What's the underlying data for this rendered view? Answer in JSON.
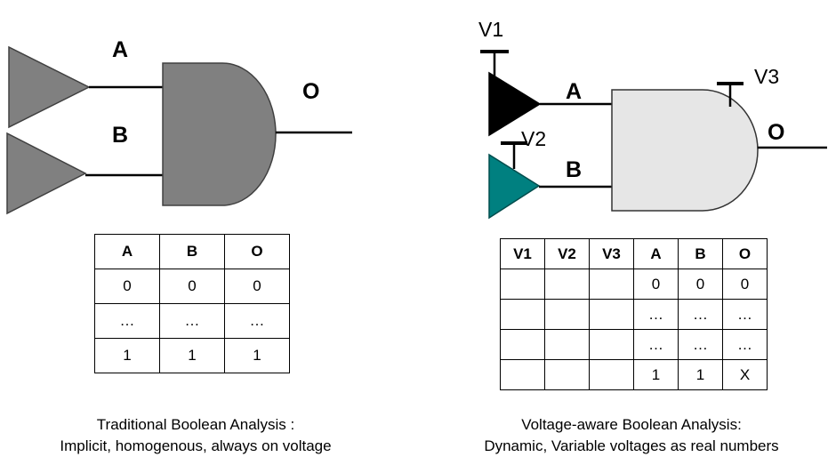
{
  "left": {
    "labels": {
      "a": "A",
      "b": "B",
      "o": "O"
    },
    "table": {
      "headers": [
        "A",
        "B",
        "O"
      ],
      "rows": [
        [
          "0",
          "0",
          "0"
        ],
        [
          "…",
          "…",
          "…"
        ],
        [
          "1",
          "1",
          "1"
        ]
      ]
    },
    "caption": [
      "Traditional Boolean Analysis :",
      "Implicit, homogenous, always on voltage"
    ],
    "colors": {
      "gate": "#808080",
      "buffer": "#808080"
    }
  },
  "right": {
    "labels": {
      "a": "A",
      "b": "B",
      "o": "O",
      "v1": "V1",
      "v2": "V2",
      "v3": "V3"
    },
    "table": {
      "headers": [
        "V1",
        "V2",
        "V3",
        "A",
        "B",
        "O"
      ],
      "rows": [
        [
          "",
          "",
          "",
          "0",
          "0",
          "0"
        ],
        [
          "",
          "",
          "",
          "…",
          "…",
          "…"
        ],
        [
          "",
          "",
          "",
          "…",
          "…",
          "…"
        ],
        [
          "",
          "",
          "",
          "1",
          "1",
          "X"
        ]
      ]
    },
    "caption": [
      "Voltage-aware Boolean Analysis:",
      "Dynamic, Variable voltages as real numbers"
    ],
    "colors": {
      "gate": "#e6e6e6",
      "buffer_a": "#000000",
      "buffer_b": "#008080"
    }
  }
}
